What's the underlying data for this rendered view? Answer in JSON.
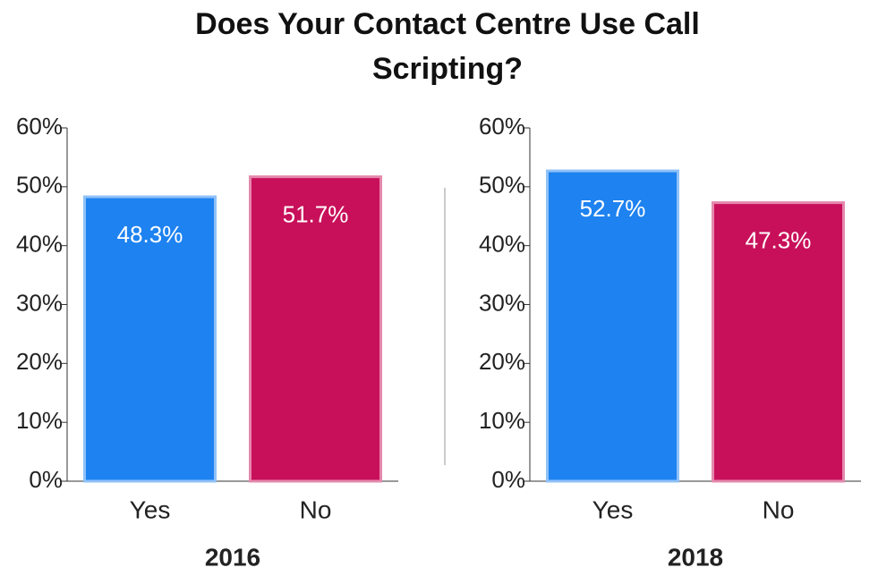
{
  "title": "Does Your Contact Centre Use Call Scripting?",
  "chart_data": [
    {
      "type": "bar",
      "xlabel": "2016",
      "categories": [
        "Yes",
        "No"
      ],
      "values": [
        48.3,
        51.7
      ],
      "value_labels": [
        "48.3%",
        "51.7%"
      ],
      "colors": [
        "#1e82f0",
        "#c8105a"
      ],
      "ylim": [
        0,
        60
      ],
      "yticks": [
        {
          "value": 0,
          "label": "0%"
        },
        {
          "value": 10,
          "label": "10%"
        },
        {
          "value": 20,
          "label": "20%"
        },
        {
          "value": 30,
          "label": "30%"
        },
        {
          "value": 40,
          "label": "40%"
        },
        {
          "value": 50,
          "label": "50%"
        },
        {
          "value": 60,
          "label": "60%"
        }
      ]
    },
    {
      "type": "bar",
      "xlabel": "2018",
      "categories": [
        "Yes",
        "No"
      ],
      "values": [
        52.7,
        47.3
      ],
      "value_labels": [
        "52.7%",
        "47.3%"
      ],
      "colors": [
        "#1e82f0",
        "#c8105a"
      ],
      "ylim": [
        0,
        60
      ],
      "yticks": [
        {
          "value": 0,
          "label": "0%"
        },
        {
          "value": 10,
          "label": "10%"
        },
        {
          "value": 20,
          "label": "20%"
        },
        {
          "value": 30,
          "label": "30%"
        },
        {
          "value": 40,
          "label": "40%"
        },
        {
          "value": 50,
          "label": "50%"
        },
        {
          "value": 60,
          "label": "60%"
        }
      ]
    }
  ]
}
